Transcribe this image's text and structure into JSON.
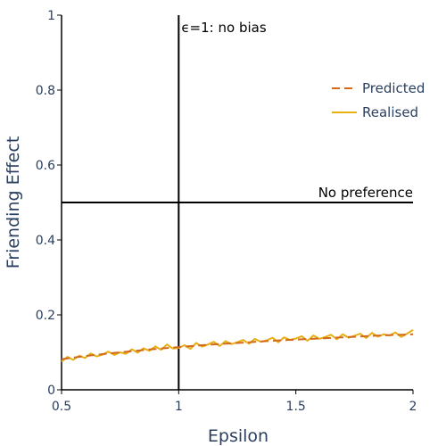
{
  "chart_data": {
    "type": "line",
    "xlabel": "Epsilon",
    "ylabel": "Friending Effect",
    "xlim": [
      0.5,
      2
    ],
    "ylim": [
      0,
      1
    ],
    "xticks": [
      0.5,
      1,
      1.5,
      2
    ],
    "xtick_labels": [
      "0.5",
      "1",
      "1.5",
      "2"
    ],
    "yticks": [
      0,
      0.2,
      0.4,
      0.6,
      0.8,
      1
    ],
    "ytick_labels": [
      "0",
      "0.2",
      "0.4",
      "0.6",
      "0.8",
      "1"
    ],
    "grid": false,
    "legend_position": "top-right",
    "series": [
      {
        "name": "Predicted",
        "style": "dashed",
        "color": "#d2691e",
        "x": [
          0.5,
          0.6,
          0.7,
          0.8,
          0.9,
          1.0,
          1.1,
          1.2,
          1.3,
          1.4,
          1.5,
          1.6,
          1.7,
          1.8,
          1.9,
          2.0
        ],
        "y": [
          0.082,
          0.09,
          0.097,
          0.103,
          0.109,
          0.114,
          0.119,
          0.123,
          0.127,
          0.131,
          0.134,
          0.137,
          0.14,
          0.143,
          0.146,
          0.148
        ]
      },
      {
        "name": "Realised",
        "style": "solid",
        "color": "#e6b012",
        "x": [
          0.5,
          0.525,
          0.55,
          0.575,
          0.6,
          0.625,
          0.65,
          0.675,
          0.7,
          0.725,
          0.75,
          0.775,
          0.8,
          0.825,
          0.85,
          0.875,
          0.9,
          0.925,
          0.95,
          0.975,
          1.0,
          1.025,
          1.05,
          1.075,
          1.1,
          1.125,
          1.15,
          1.175,
          1.2,
          1.225,
          1.25,
          1.275,
          1.3,
          1.325,
          1.35,
          1.375,
          1.4,
          1.425,
          1.45,
          1.475,
          1.5,
          1.525,
          1.55,
          1.575,
          1.6,
          1.625,
          1.65,
          1.675,
          1.7,
          1.725,
          1.75,
          1.775,
          1.8,
          1.825,
          1.85,
          1.875,
          1.9,
          1.925,
          1.95,
          1.975,
          2.0
        ],
        "y": [
          0.075,
          0.088,
          0.08,
          0.091,
          0.085,
          0.097,
          0.089,
          0.094,
          0.102,
          0.093,
          0.1,
          0.096,
          0.108,
          0.099,
          0.111,
          0.104,
          0.116,
          0.107,
          0.121,
          0.11,
          0.112,
          0.119,
          0.109,
          0.125,
          0.115,
          0.121,
          0.128,
          0.117,
          0.13,
          0.122,
          0.127,
          0.133,
          0.123,
          0.136,
          0.128,
          0.132,
          0.139,
          0.127,
          0.14,
          0.133,
          0.137,
          0.143,
          0.131,
          0.145,
          0.136,
          0.141,
          0.147,
          0.135,
          0.148,
          0.139,
          0.144,
          0.15,
          0.138,
          0.152,
          0.142,
          0.148,
          0.145,
          0.153,
          0.141,
          0.15,
          0.16
        ]
      }
    ],
    "reference_lines": [
      {
        "orientation": "vertical",
        "value": 1,
        "label": "ϵ=1: no bias"
      },
      {
        "orientation": "horizontal",
        "value": 0.5,
        "label": "No preference"
      }
    ]
  }
}
